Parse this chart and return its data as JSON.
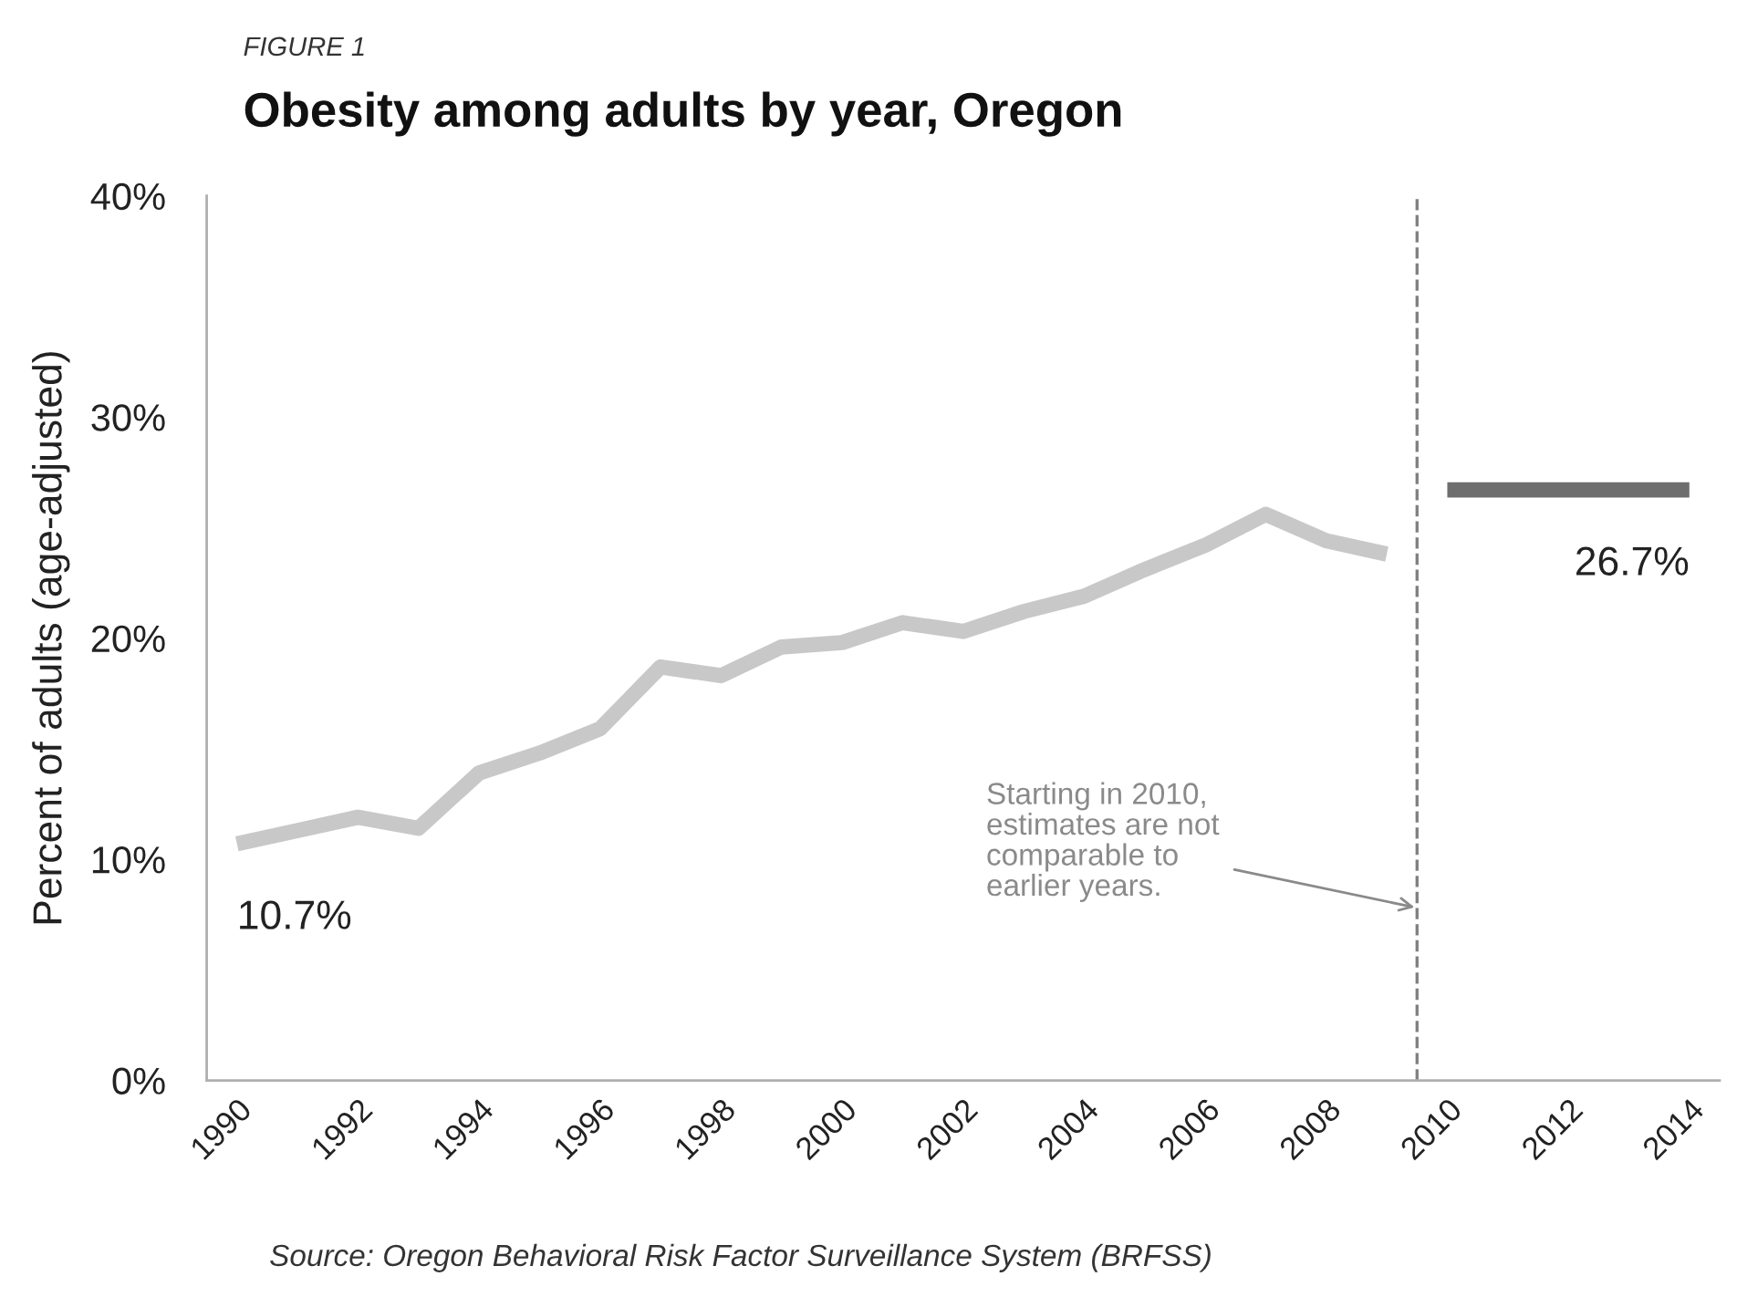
{
  "chart_data": {
    "type": "line",
    "title": "Obesity among adults by year, Oregon",
    "subtitle": "FIGURE 1",
    "ylabel": "Percent of adults (age-adjusted)",
    "series": [
      {
        "color": "#c8c8c8",
        "x": [
          1990,
          1991,
          1992,
          1993,
          1994,
          1995,
          1996,
          1997,
          1998,
          1999,
          2000,
          2001,
          2002,
          2003,
          2004,
          2005,
          2006,
          2007,
          2008,
          2009
        ],
        "values": [
          10.7,
          11.3,
          11.9,
          11.4,
          13.9,
          14.8,
          15.9,
          18.7,
          18.3,
          19.6,
          19.8,
          20.7,
          20.3,
          21.2,
          21.9,
          23.1,
          24.2,
          25.6,
          24.4,
          23.8
        ],
        "value_labels": [
          "10.7%",
          null,
          null,
          null,
          null,
          null,
          null,
          null,
          null,
          null,
          null,
          null,
          null,
          null,
          null,
          null,
          null,
          null,
          null,
          null
        ]
      },
      {
        "color": "#6e6e6e",
        "x": [
          2010,
          2014
        ],
        "values": [
          26.7,
          26.7
        ],
        "value_labels": [
          null,
          "26.7%"
        ]
      }
    ],
    "xlim": [
      1989.5,
      2014.5
    ],
    "xticks": [
      1990,
      1992,
      1994,
      1996,
      1998,
      2000,
      2002,
      2004,
      2006,
      2008,
      2010,
      2012,
      2014
    ],
    "ylim": [
      0,
      40
    ],
    "yticks": [
      {
        "value": 0,
        "label": "0%"
      },
      {
        "value": 10,
        "label": "10%"
      },
      {
        "value": 20,
        "label": "20%"
      },
      {
        "value": 30,
        "label": "30%"
      },
      {
        "value": 40,
        "label": "40%"
      }
    ],
    "ref_lines": [
      {
        "axis": "x",
        "value": 2009.5,
        "color": "#808080",
        "line_style": "dashed"
      }
    ],
    "annotations": [
      {
        "text": "Starting in 2010,\nestimates are not\ncomparable to\nearlier years.",
        "x": 2009.5,
        "y": 7.8
      },
      "Source: Oregon Behavioral Risk Factor Surveillance System (BRFSS)"
    ]
  }
}
